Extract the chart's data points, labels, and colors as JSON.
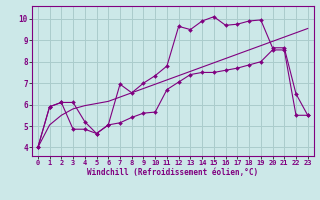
{
  "xlabel": "Windchill (Refroidissement éolien,°C)",
  "background_color": "#cce8e8",
  "grid_color": "#aacccc",
  "line_color": "#800080",
  "xlim": [
    -0.5,
    23.5
  ],
  "ylim": [
    3.6,
    10.6
  ],
  "xticks": [
    0,
    1,
    2,
    3,
    4,
    5,
    6,
    7,
    8,
    9,
    10,
    11,
    12,
    13,
    14,
    15,
    16,
    17,
    18,
    19,
    20,
    21,
    22,
    23
  ],
  "yticks": [
    4,
    5,
    6,
    7,
    8,
    9,
    10
  ],
  "line1_x": [
    0,
    1,
    2,
    3,
    4,
    5,
    6,
    7,
    8,
    9,
    10,
    11,
    12,
    13,
    14,
    15,
    16,
    17,
    18,
    19,
    20,
    21,
    22,
    23
  ],
  "line1_y": [
    4.0,
    5.9,
    6.1,
    4.85,
    4.85,
    4.65,
    5.05,
    6.95,
    6.55,
    7.0,
    7.35,
    7.8,
    9.65,
    9.5,
    9.9,
    10.1,
    9.7,
    9.75,
    9.9,
    9.95,
    8.65,
    8.65,
    6.5,
    5.5
  ],
  "line1_marker": true,
  "line2_x": [
    0,
    1,
    2,
    3,
    4,
    5,
    6,
    7,
    8,
    9,
    10,
    11,
    12,
    13,
    14,
    15,
    16,
    17,
    18,
    19,
    20,
    21,
    22,
    23
  ],
  "line2_y": [
    4.0,
    5.9,
    6.1,
    6.1,
    5.2,
    4.65,
    5.05,
    5.15,
    5.4,
    5.6,
    5.65,
    6.7,
    7.05,
    7.4,
    7.5,
    7.5,
    7.6,
    7.7,
    7.85,
    8.0,
    8.55,
    8.55,
    5.5,
    5.5
  ],
  "line2_marker": true,
  "line3_x": [
    0,
    1,
    2,
    3,
    4,
    5,
    6,
    7,
    8,
    9,
    10,
    11,
    12,
    13,
    14,
    15,
    16,
    17,
    18,
    19,
    20,
    21,
    22,
    23
  ],
  "line3_y": [
    4.0,
    5.05,
    5.5,
    5.8,
    5.95,
    6.05,
    6.15,
    6.35,
    6.55,
    6.75,
    6.95,
    7.15,
    7.35,
    7.55,
    7.75,
    7.95,
    8.15,
    8.35,
    8.55,
    8.75,
    8.95,
    9.15,
    9.35,
    9.55
  ],
  "line3_marker": false,
  "marker": "D",
  "marker_size": 2.0,
  "tick_fontsize": 5.0,
  "xlabel_fontsize": 5.5
}
